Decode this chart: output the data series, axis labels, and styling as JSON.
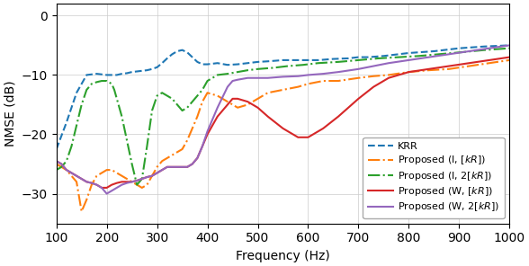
{
  "xlabel": "Frequency (Hz)",
  "ylabel": "NMSE (dB)",
  "xlim": [
    100,
    1000
  ],
  "ylim": [
    -35,
    2
  ],
  "yticks": [
    0,
    -10,
    -20,
    -30
  ],
  "xticks": [
    100,
    200,
    300,
    400,
    500,
    600,
    700,
    800,
    900,
    1000
  ],
  "figsize": [
    5.88,
    2.96
  ],
  "dpi": 100,
  "colors": [
    "#1f77b4",
    "#ff7f0e",
    "#2ca02c",
    "#d62728",
    "#9467bd"
  ],
  "krr_x": [
    100,
    120,
    140,
    160,
    180,
    200,
    210,
    220,
    230,
    240,
    250,
    260,
    270,
    280,
    290,
    300,
    310,
    320,
    330,
    340,
    350,
    360,
    370,
    380,
    390,
    400,
    420,
    440,
    460,
    480,
    500,
    520,
    550,
    580,
    600,
    620,
    650,
    680,
    700,
    720,
    750,
    780,
    800,
    850,
    900,
    950,
    1000
  ],
  "krr_y": [
    -22.5,
    -18,
    -13,
    -10,
    -9.8,
    -10,
    -10,
    -10,
    -9.8,
    -9.7,
    -9.5,
    -9.4,
    -9.3,
    -9.2,
    -9.0,
    -8.7,
    -8.0,
    -7.2,
    -6.5,
    -6.0,
    -5.8,
    -6.2,
    -7.0,
    -7.8,
    -8.2,
    -8.2,
    -8.0,
    -8.3,
    -8.2,
    -8.0,
    -7.8,
    -7.7,
    -7.5,
    -7.5,
    -7.5,
    -7.5,
    -7.3,
    -7.2,
    -7.0,
    -7.0,
    -6.8,
    -6.5,
    -6.3,
    -6.0,
    -5.5,
    -5.2,
    -5.0
  ],
  "prop_I_kR_x": [
    100,
    110,
    120,
    130,
    140,
    150,
    160,
    170,
    180,
    190,
    200,
    210,
    220,
    230,
    240,
    250,
    260,
    270,
    280,
    290,
    300,
    310,
    320,
    330,
    340,
    350,
    360,
    370,
    380,
    390,
    400,
    420,
    440,
    460,
    480,
    500,
    520,
    550,
    580,
    600,
    630,
    660,
    700,
    730,
    760,
    800,
    840,
    880,
    920,
    960,
    1000
  ],
  "prop_I_kR_y": [
    -25,
    -25.5,
    -26,
    -27,
    -28,
    -33,
    -31,
    -28.5,
    -27,
    -26.5,
    -26,
    -26,
    -26.5,
    -27,
    -27.5,
    -28,
    -28.5,
    -29,
    -28.5,
    -27,
    -25.5,
    -24.5,
    -24,
    -23.5,
    -23,
    -22.5,
    -21,
    -19,
    -17,
    -14.5,
    -13,
    -13.5,
    -14.5,
    -15.5,
    -15,
    -14,
    -13,
    -12.5,
    -12,
    -11.5,
    -11,
    -11,
    -10.5,
    -10.2,
    -10,
    -9.5,
    -9.2,
    -9.0,
    -8.5,
    -8.0,
    -7.5
  ],
  "prop_I_2kR_x": [
    100,
    110,
    120,
    130,
    140,
    150,
    160,
    170,
    180,
    190,
    200,
    210,
    215,
    220,
    230,
    240,
    250,
    260,
    270,
    280,
    290,
    300,
    310,
    320,
    330,
    340,
    350,
    360,
    370,
    380,
    390,
    400,
    420,
    440,
    460,
    480,
    500,
    530,
    560,
    590,
    620,
    660,
    700,
    740,
    780,
    820,
    860,
    900,
    950,
    1000
  ],
  "prop_I_2kR_y": [
    -26,
    -25.5,
    -24.5,
    -22,
    -18.5,
    -15,
    -12.5,
    -11.5,
    -11.2,
    -11,
    -11,
    -11.5,
    -12.5,
    -14,
    -17,
    -21,
    -25,
    -28.5,
    -27.5,
    -22,
    -16,
    -13.5,
    -13,
    -13.5,
    -14,
    -15,
    -16,
    -15.5,
    -14.5,
    -13.5,
    -12.5,
    -11,
    -10,
    -9.8,
    -9.5,
    -9.2,
    -9.0,
    -8.8,
    -8.5,
    -8.3,
    -8.0,
    -7.8,
    -7.5,
    -7.2,
    -7.0,
    -6.8,
    -6.5,
    -6.2,
    -5.8,
    -5.5
  ],
  "prop_W_kR_x": [
    100,
    110,
    120,
    130,
    140,
    150,
    160,
    170,
    180,
    190,
    200,
    210,
    220,
    230,
    240,
    250,
    260,
    270,
    280,
    290,
    300,
    310,
    320,
    330,
    340,
    350,
    360,
    370,
    380,
    390,
    400,
    420,
    440,
    450,
    460,
    480,
    500,
    520,
    550,
    580,
    600,
    630,
    660,
    700,
    730,
    760,
    800,
    840,
    880,
    920,
    960,
    1000
  ],
  "prop_W_kR_y": [
    -24.5,
    -25,
    -26,
    -26.5,
    -27,
    -27.5,
    -28,
    -28.2,
    -28.5,
    -29,
    -29,
    -28.5,
    -28.2,
    -28,
    -28,
    -28,
    -27.8,
    -27.5,
    -27.2,
    -27,
    -26.5,
    -26,
    -25.5,
    -25.5,
    -25.5,
    -25.5,
    -25.5,
    -25,
    -24,
    -22,
    -20,
    -17,
    -15,
    -14,
    -14,
    -14.5,
    -15.5,
    -17,
    -19,
    -20.5,
    -20.5,
    -19,
    -17,
    -14,
    -12,
    -10.5,
    -9.5,
    -9.0,
    -8.5,
    -8.0,
    -7.5,
    -7.0
  ],
  "prop_W_2kR_x": [
    100,
    110,
    120,
    130,
    140,
    150,
    160,
    170,
    180,
    190,
    200,
    210,
    220,
    230,
    240,
    250,
    260,
    270,
    280,
    290,
    300,
    310,
    320,
    330,
    340,
    350,
    360,
    370,
    380,
    390,
    400,
    420,
    440,
    450,
    460,
    480,
    500,
    520,
    550,
    580,
    600,
    630,
    660,
    700,
    730,
    760,
    800,
    840,
    880,
    920,
    960,
    1000
  ],
  "prop_W_2kR_y": [
    -24.5,
    -25,
    -26,
    -26.5,
    -27,
    -27.5,
    -28,
    -28.2,
    -28.5,
    -29,
    -30,
    -29.5,
    -29,
    -28.5,
    -28.2,
    -28,
    -27.8,
    -27.5,
    -27.2,
    -27,
    -26.5,
    -26,
    -25.5,
    -25.5,
    -25.5,
    -25.5,
    -25.5,
    -25,
    -24,
    -22,
    -19.5,
    -15.5,
    -12,
    -11,
    -10.8,
    -10.5,
    -10.5,
    -10.5,
    -10.3,
    -10.2,
    -10.0,
    -9.8,
    -9.5,
    -9.0,
    -8.5,
    -8.0,
    -7.5,
    -7.0,
    -6.5,
    -6.0,
    -5.5,
    -5.0
  ]
}
